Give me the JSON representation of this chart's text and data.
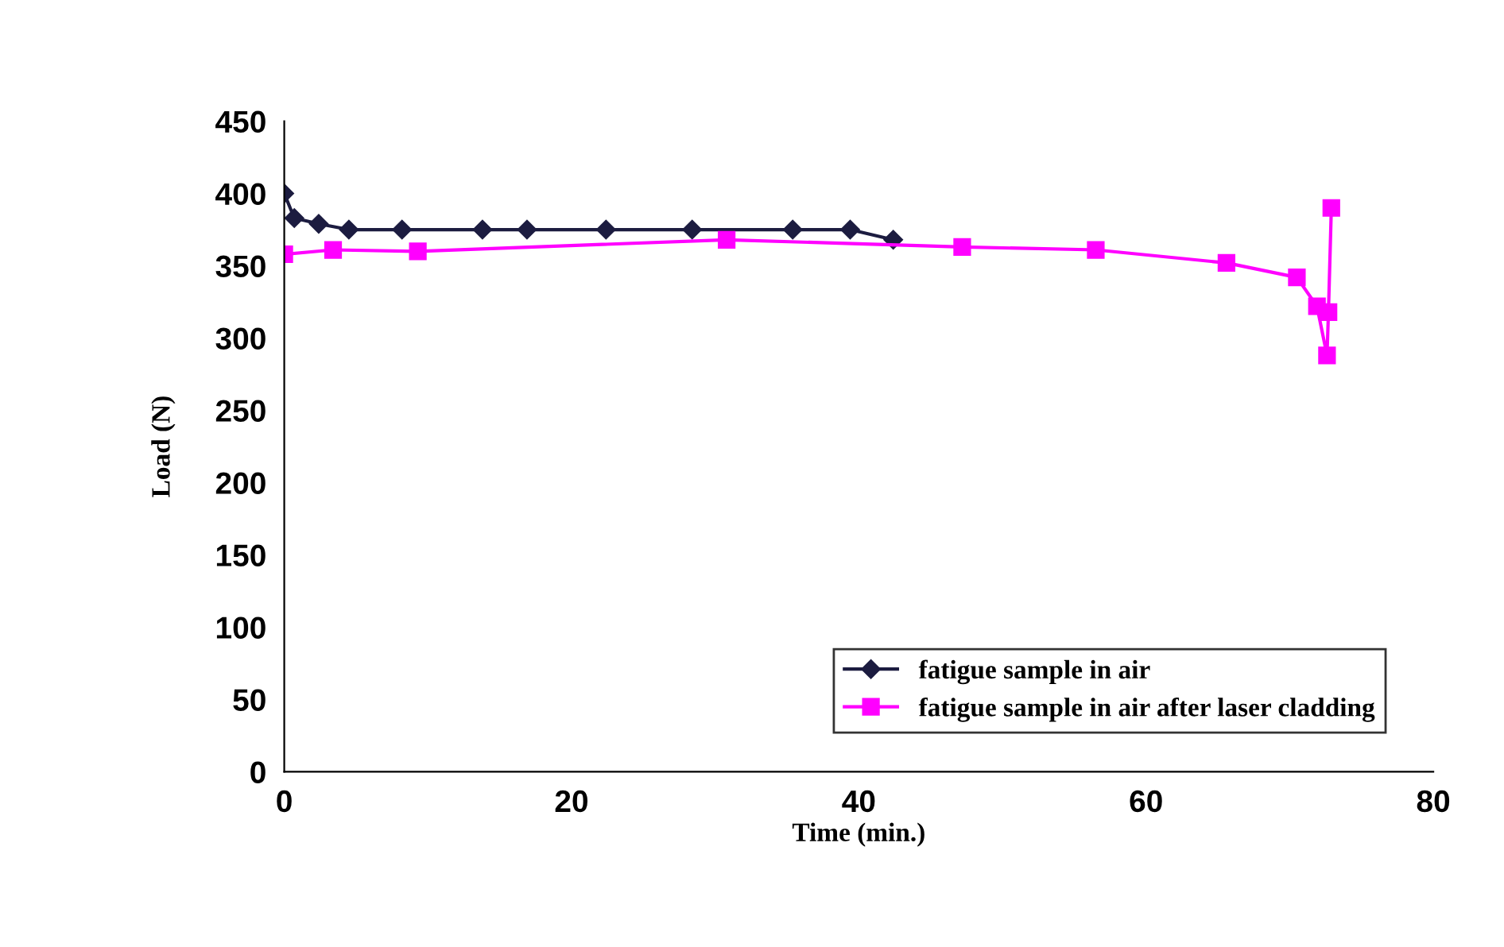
{
  "chart_data": {
    "type": "line",
    "xlabel": "Time (min.)",
    "ylabel": "Load (N)",
    "xlim": [
      0,
      80
    ],
    "xticks": [
      0,
      20,
      40,
      60,
      80
    ],
    "ylim": [
      0,
      450
    ],
    "yticks": [
      0,
      50,
      100,
      150,
      200,
      250,
      300,
      350,
      400,
      450
    ],
    "grid": false,
    "legend": "bottom right",
    "series": [
      {
        "name": "fatigue sample in air",
        "color": "#1c1c40",
        "marker": "diamond",
        "x": [
          0,
          0.7,
          2.4,
          4.5,
          8.2,
          13.8,
          16.9,
          22.4,
          28.4,
          35.4,
          39.4,
          42.4
        ],
        "values": [
          400,
          383,
          379,
          375,
          375,
          375,
          375,
          375,
          375,
          375,
          375,
          368
        ]
      },
      {
        "name": "fatigue sample in air after laser cladding",
        "color": "#ff00ff",
        "marker": "square",
        "x": [
          0,
          3.4,
          9.3,
          30.8,
          47.2,
          56.5,
          65.6,
          70.5,
          71.9,
          72.6,
          72.7,
          72.9
        ],
        "values": [
          358,
          361,
          360,
          368,
          363,
          361,
          352,
          342,
          322,
          288,
          318,
          390
        ]
      }
    ]
  }
}
